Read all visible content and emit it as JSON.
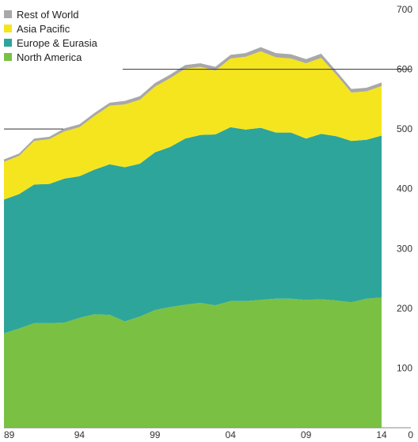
{
  "chart_data": {
    "type": "area",
    "stacked": true,
    "x": [
      1989,
      1990,
      1991,
      1992,
      1993,
      1994,
      1995,
      1996,
      1997,
      1998,
      1999,
      2000,
      2001,
      2002,
      2003,
      2004,
      2005,
      2006,
      2007,
      2008,
      2009,
      2010,
      2011,
      2012,
      2013,
      2014
    ],
    "xticks": [
      "89",
      "94",
      "99",
      "04",
      "09",
      "14"
    ],
    "yticks": [
      "0",
      "100",
      "200",
      "300",
      "400",
      "500",
      "600",
      "700"
    ],
    "ylim": [
      0,
      700
    ],
    "grid": "partial",
    "legend_position": "top-left",
    "series": [
      {
        "name": "North America",
        "color": "#7ac143",
        "values": [
          158,
          166,
          175,
          175,
          176,
          184,
          190,
          189,
          178,
          186,
          197,
          202,
          206,
          209,
          205,
          212,
          212,
          214,
          216,
          216,
          214,
          215,
          213,
          210,
          216,
          218
        ]
      },
      {
        "name": "Europe & Eurasia",
        "color": "#2ea59a",
        "values": [
          224,
          225,
          232,
          233,
          241,
          237,
          242,
          252,
          258,
          256,
          264,
          268,
          278,
          281,
          286,
          291,
          287,
          288,
          278,
          278,
          270,
          277,
          275,
          270,
          266,
          271
        ]
      },
      {
        "name": "Asia Pacific",
        "color": "#f5e51e",
        "values": [
          63,
          64,
          73,
          75,
          79,
          82,
          90,
          98,
          105,
          107,
          110,
          115,
          117,
          114,
          107,
          115,
          122,
          128,
          126,
          124,
          126,
          127,
          103,
          81,
          81,
          83
        ]
      },
      {
        "name": "Rest of World",
        "color": "#a8a8a8",
        "values": [
          4,
          4,
          4,
          4,
          5,
          5,
          5,
          5,
          6,
          6,
          6,
          6,
          6,
          6,
          6,
          6,
          6,
          7,
          7,
          7,
          7,
          7,
          6,
          6,
          6,
          6
        ]
      }
    ],
    "legend_order": [
      "Rest of World",
      "Asia Pacific",
      "Europe & Eurasia",
      "North America"
    ]
  }
}
